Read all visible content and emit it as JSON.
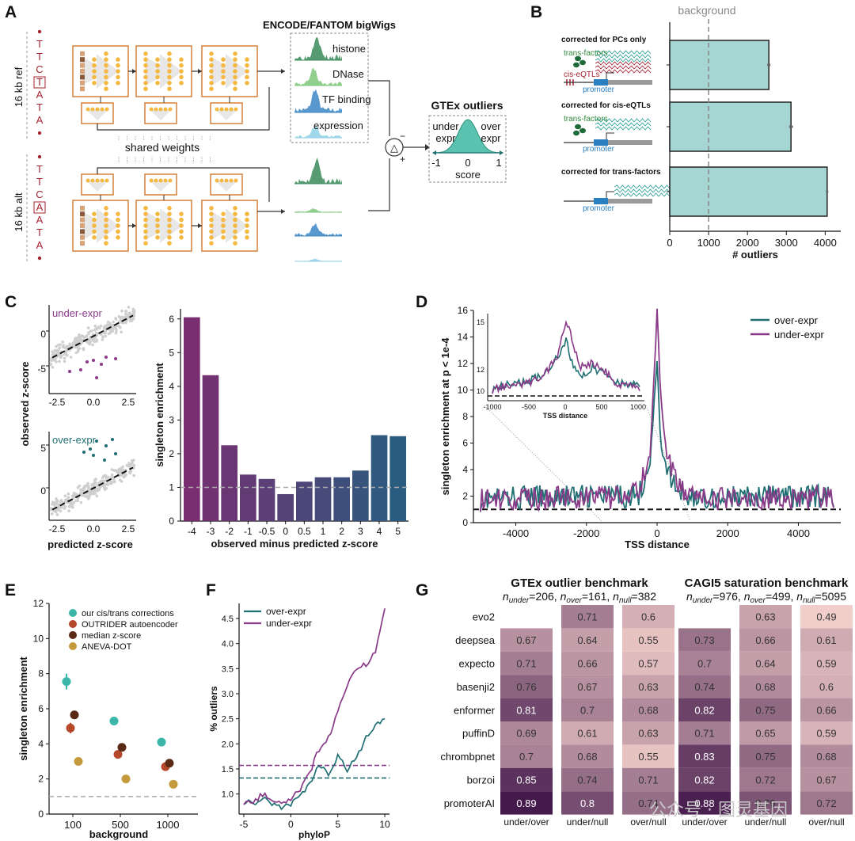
{
  "panels": {
    "A": "A",
    "B": "B",
    "C": "C",
    "D": "D",
    "E": "E",
    "F": "F",
    "G": "G"
  },
  "colors": {
    "teal": "#1f6f73",
    "purple": "#8a3a88",
    "bar_b": "#a6d6d3",
    "model_dark": "#2f7a4c"
  },
  "panel_a": {
    "ref_label": "16 kb ref",
    "alt_label": "16 kb alt",
    "ref_seq": [
      "T",
      "T",
      "C",
      "T",
      "A",
      "T",
      "A"
    ],
    "alt_seq": [
      "T",
      "T",
      "C",
      "A",
      "A",
      "T",
      "A"
    ],
    "shared_weights": "shared weights",
    "bigwig_title": "ENCODE/FANTOM bigWigs",
    "tracks": [
      "histone",
      "DNase",
      "TF binding",
      "expression"
    ],
    "delta": "△",
    "minus": "−",
    "plus": "+",
    "outlier_title": "GTEx outliers",
    "under": "under",
    "under2": "expr",
    "over": "over",
    "over2": "expr",
    "ticks": [
      "-1",
      "0",
      "1"
    ],
    "score": "score"
  },
  "panel_b": {
    "background_label": "background",
    "groups": [
      {
        "title": "corrected for PCs only",
        "labels": [
          "trans-factors",
          "cis-eQTLs",
          "promoter"
        ]
      },
      {
        "title": "corrected for cis-eQTLs",
        "labels": [
          "trans-factors",
          "promoter"
        ]
      },
      {
        "title": "corrected for trans-factors",
        "labels": [
          "promoter"
        ]
      }
    ]
  },
  "panel_c": {
    "scatter_top_label": "under-expr",
    "scatter_bottom_label": "over-expr",
    "ylabel": "observed z-score",
    "xlabel": "predicted z-score",
    "top_yticks": [
      "0",
      "-5"
    ],
    "bottom_yticks": [
      "5",
      "0"
    ],
    "xticks": [
      "-2.5",
      "0.0",
      "2.5"
    ]
  },
  "panel_d_inset": {
    "xlabel": "TSS distance",
    "xticks": [
      "-1000",
      "-500",
      "0",
      "500",
      "1000"
    ],
    "yticks": [
      "15",
      "12",
      "10"
    ]
  },
  "panel_g": {
    "gtex_title": "GTEx outlier benchmark",
    "gtex_sub": [
      "n",
      "under",
      "=206, ",
      "n",
      "over",
      "=161, ",
      "n",
      "null",
      "=382"
    ],
    "cagi_title": "CAGI5 saturation benchmark",
    "cagi_sub": [
      "n",
      "under",
      "=976, ",
      "n",
      "over",
      "=499, ",
      "n",
      "null",
      "=5095"
    ],
    "models": [
      "evo2",
      "deepsea",
      "expecto",
      "basenji2",
      "enformer",
      "puffinD",
      "chrombpnet",
      "borzoi",
      "promoterAI"
    ],
    "columns": [
      "under/over",
      "under/null",
      "over/null"
    ],
    "gtex": [
      [
        "",
        "0.71",
        "0.6"
      ],
      [
        "0.67",
        "0.64",
        "0.55"
      ],
      [
        "0.71",
        "0.66",
        "0.57"
      ],
      [
        "0.76",
        "0.67",
        "0.63"
      ],
      [
        "0.81",
        "0.7",
        "0.68"
      ],
      [
        "0.69",
        "0.61",
        "0.63"
      ],
      [
        "0.7",
        "0.68",
        "0.55"
      ],
      [
        "0.85",
        "0.74",
        "0.71"
      ],
      [
        "0.89",
        "0.8",
        "0.74"
      ]
    ],
    "cagi": [
      [
        "",
        "0.63",
        "0.49"
      ],
      [
        "0.73",
        "0.66",
        "0.61"
      ],
      [
        "0.7",
        "0.64",
        "0.59"
      ],
      [
        "0.74",
        "0.68",
        "0.6"
      ],
      [
        "0.82",
        "0.75",
        "0.66"
      ],
      [
        "0.71",
        "0.65",
        "0.59"
      ],
      [
        "0.83",
        "0.75",
        "0.68"
      ],
      [
        "0.82",
        "0.72",
        "0.67"
      ],
      [
        "0.88",
        "0.79",
        "0.72"
      ]
    ]
  },
  "watermark": "公众号 · 图灵基因",
  "chart_data": [
    {
      "id": "B",
      "type": "bar",
      "orientation": "horizontal",
      "categories": [
        "corrected for PCs only",
        "corrected for cis-eQTLs",
        "corrected for trans-factors"
      ],
      "values": [
        2550,
        3120,
        4050
      ],
      "errors": [
        40,
        50,
        30
      ],
      "background": 1000,
      "xlabel": "# outliers",
      "xlim": [
        0,
        4400
      ],
      "xticks": [
        0,
        1000,
        2000,
        3000,
        4000
      ]
    },
    {
      "id": "C",
      "type": "bar",
      "categories": [
        "-4",
        "-3",
        "-2",
        "-1",
        "-0.5",
        "0",
        "0.5",
        "1",
        "2",
        "3",
        "4",
        "5"
      ],
      "values": [
        6.05,
        4.33,
        2.25,
        1.38,
        1.25,
        0.8,
        1.17,
        1.3,
        1.3,
        1.5,
        2.55,
        2.52
      ],
      "xlabel": "observed minus predicted z-score",
      "ylabel": "singleton enrichment",
      "ylim": [
        0,
        6.3
      ],
      "yticks": [
        0,
        1,
        2,
        3,
        4,
        5,
        6
      ],
      "reference": 1
    },
    {
      "id": "D",
      "type": "line",
      "xlabel": "TSS distance",
      "ylabel": "singleton enrichment at p < 1e-4",
      "xlim": [
        -5200,
        5200
      ],
      "ylim": [
        0,
        16
      ],
      "xticks": [
        -4000,
        -2000,
        0,
        2000,
        4000
      ],
      "yticks": [
        0,
        2,
        4,
        6,
        8,
        10,
        12,
        14,
        16
      ],
      "reference": 1,
      "series": [
        {
          "name": "over-expr",
          "x": [
            -5000,
            -3000,
            -1000,
            -500,
            -200,
            0,
            100,
            300,
            600,
            1000,
            2000,
            3000,
            5000
          ],
          "values": [
            1.6,
            1.8,
            1.8,
            2.0,
            4.5,
            12.0,
            6.0,
            3.5,
            2.2,
            1.8,
            1.7,
            1.8,
            1.8
          ]
        },
        {
          "name": "under-expr",
          "x": [
            -5000,
            -3000,
            -1000,
            -500,
            -200,
            0,
            100,
            300,
            600,
            1000,
            2000,
            3000,
            5000
          ],
          "values": [
            1.5,
            1.7,
            1.7,
            2.2,
            5.0,
            15.8,
            9.5,
            4.5,
            2.5,
            1.8,
            1.6,
            1.7,
            1.7
          ]
        }
      ],
      "legend": "top-right"
    },
    {
      "id": "E",
      "type": "scatter",
      "xlabel": "background",
      "ylabel": "singleton enrichment",
      "ylim": [
        0,
        12
      ],
      "xcategories": [
        "100",
        "500",
        "1000"
      ],
      "yticks": [
        0,
        2,
        4,
        6,
        8,
        10,
        12
      ],
      "reference": 1,
      "series": [
        {
          "name": "our cis/trans corrections",
          "color": "#3bb6a9",
          "values": [
            7.55,
            5.3,
            4.1
          ]
        },
        {
          "name": "OUTRIDER autoencoder",
          "color": "#b5482b",
          "values": [
            4.9,
            3.4,
            2.7
          ]
        },
        {
          "name": "median z-score",
          "color": "#5a2a16",
          "values": [
            5.65,
            3.8,
            2.9
          ]
        },
        {
          "name": "ANEVA-DOT",
          "color": "#c49a3c",
          "values": [
            3.0,
            2.0,
            1.7
          ]
        }
      ],
      "legend": "top-left"
    },
    {
      "id": "F",
      "type": "line",
      "xlabel": "phyloP",
      "ylabel": "% outliers",
      "xlim": [
        -5.5,
        10.5
      ],
      "ylim": [
        0.6,
        4.8
      ],
      "xticks": [
        -5,
        0,
        5,
        10
      ],
      "yticks": [
        1.0,
        1.5,
        2.0,
        2.5,
        3.0,
        3.5,
        4.0,
        4.5
      ],
      "references": [
        1.32,
        1.57
      ],
      "series": [
        {
          "name": "over-expr",
          "x": [
            -5,
            -4,
            -3,
            -2,
            -1,
            0,
            1,
            2,
            3,
            4,
            5,
            6,
            7,
            8,
            9,
            10
          ],
          "values": [
            0.85,
            0.8,
            0.9,
            0.82,
            0.75,
            0.8,
            0.95,
            1.2,
            1.55,
            1.4,
            1.75,
            1.5,
            1.7,
            2.1,
            2.4,
            2.5
          ]
        },
        {
          "name": "under-expr",
          "x": [
            -5,
            -4,
            -3,
            -2,
            -1,
            0,
            1,
            2,
            3,
            4,
            5,
            6,
            7,
            8,
            9,
            10
          ],
          "values": [
            0.85,
            0.8,
            1.0,
            0.9,
            0.82,
            0.9,
            1.1,
            1.4,
            1.9,
            2.1,
            2.7,
            3.2,
            3.5,
            3.6,
            3.8,
            4.7
          ]
        }
      ],
      "legend": "top-left"
    }
  ]
}
